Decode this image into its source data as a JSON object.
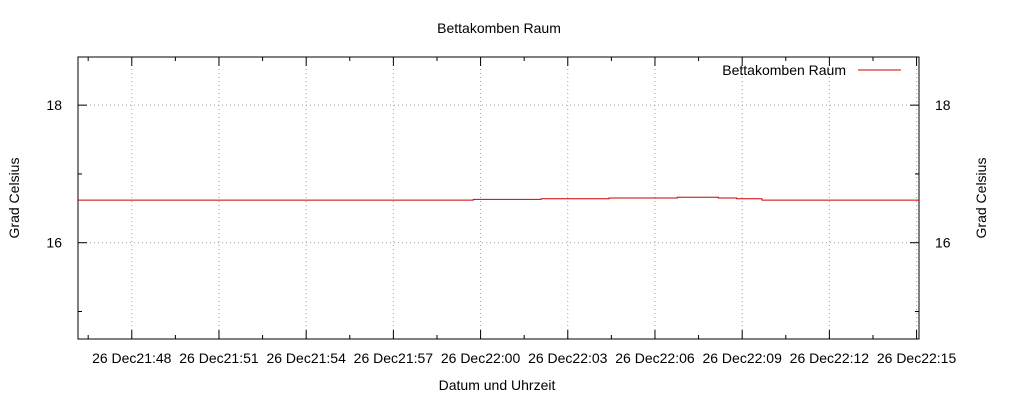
{
  "chart_data": {
    "type": "line",
    "title": "Bettakomben Raum",
    "xlabel": "Datum und Uhrzeit",
    "ylabel": "Grad Celsius",
    "y2label": "Grad Celsius",
    "ylim": [
      14.6,
      18.7
    ],
    "xlim": [
      "26 Dec 21:46:09",
      "26 Dec 22:15:05"
    ],
    "grid": true,
    "legend_position": "top-right",
    "y_ticks": [
      16,
      18
    ],
    "x_ticks": [
      "26 Dec21:48",
      "26 Dec21:51",
      "26 Dec21:54",
      "26 Dec21:57",
      "26 Dec22:00",
      "26 Dec22:03",
      "26 Dec22:06",
      "26 Dec22:09",
      "26 Dec22:12",
      "26 Dec22:15"
    ],
    "series": [
      {
        "name": "Bettakomben Raum",
        "color": "#cc0000",
        "points": [
          [
            "26 Dec 21:46:09",
            16.62
          ],
          [
            "26 Dec 21:59:45",
            16.62
          ],
          [
            "26 Dec 21:59:45",
            16.63
          ],
          [
            "26 Dec 22:02:05",
            16.63
          ],
          [
            "26 Dec 22:02:05",
            16.64
          ],
          [
            "26 Dec 22:04:25",
            16.64
          ],
          [
            "26 Dec 22:04:25",
            16.65
          ],
          [
            "26 Dec 22:06:46",
            16.65
          ],
          [
            "26 Dec 22:06:46",
            16.66
          ],
          [
            "26 Dec 22:08:11",
            16.66
          ],
          [
            "26 Dec 22:08:11",
            16.65
          ],
          [
            "26 Dec 22:08:49",
            16.65
          ],
          [
            "26 Dec 22:08:49",
            16.64
          ],
          [
            "26 Dec 22:09:41",
            16.64
          ],
          [
            "26 Dec 22:09:41",
            16.62
          ],
          [
            "26 Dec 22:15:05",
            16.62
          ]
        ]
      }
    ]
  }
}
